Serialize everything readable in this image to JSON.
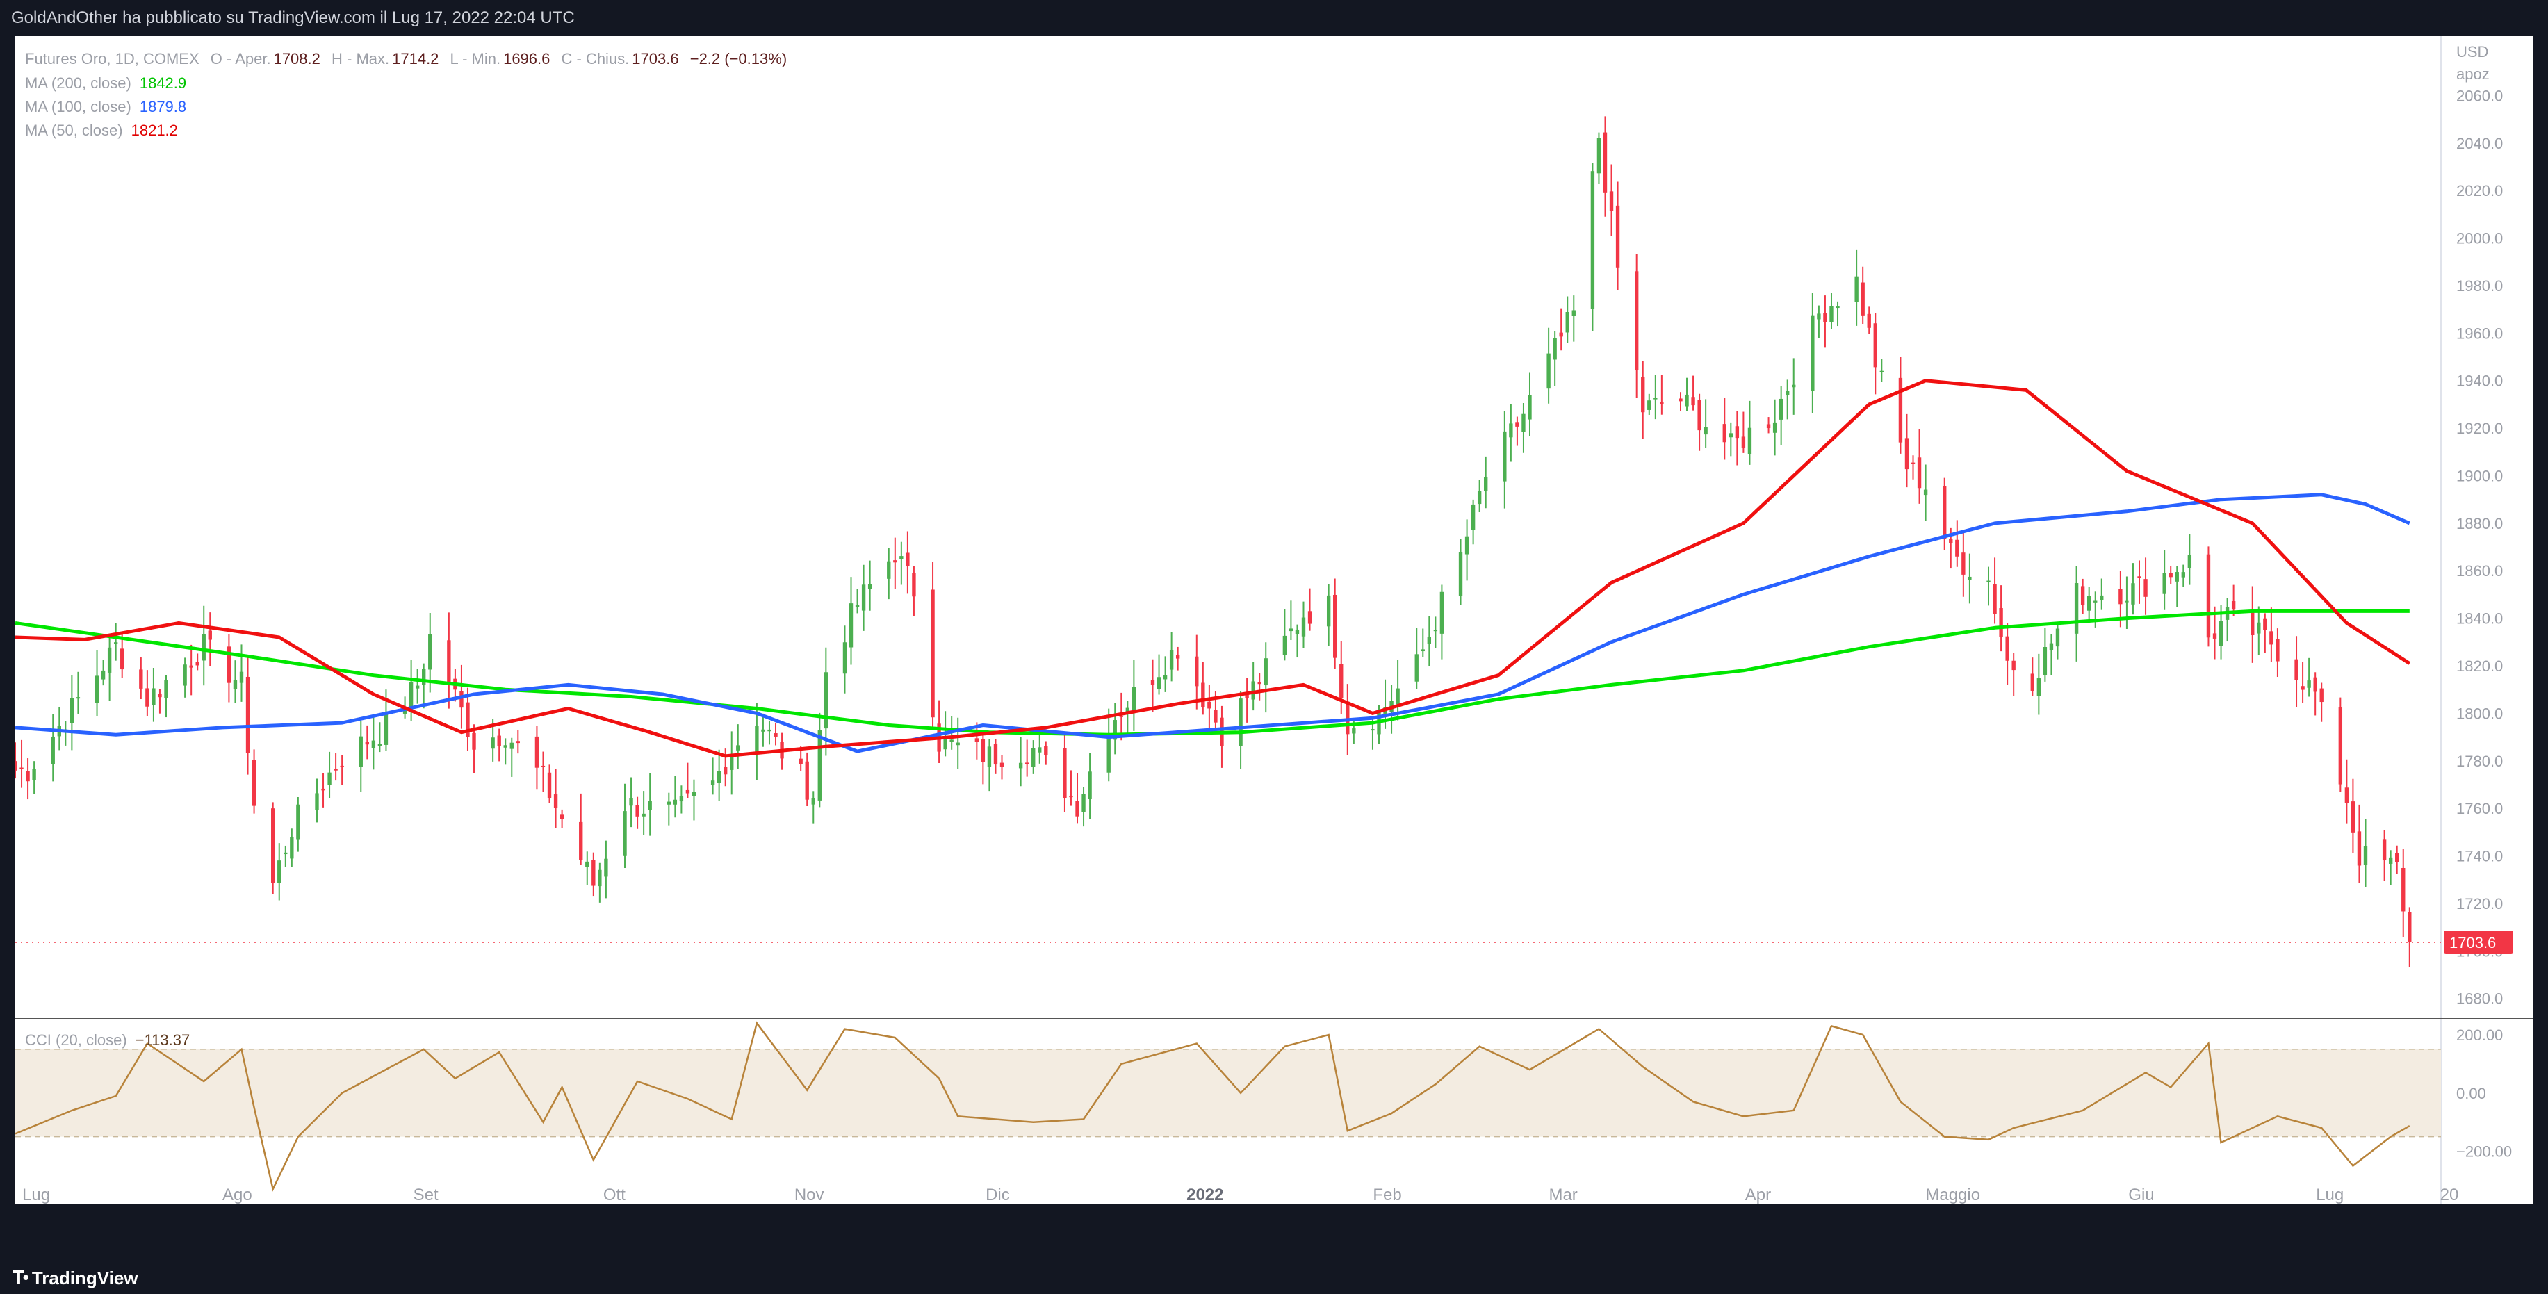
{
  "header": {
    "published": "GoldAndOther ha pubblicato su TradingView.com il Lug 17, 2022 22:04 UTC"
  },
  "footer": {
    "brand": "TradingView"
  },
  "legend": {
    "symbol": "Futures Oro, 1D, COMEX",
    "open_label": "O - Aper.",
    "open": "1708.2",
    "high_label": "H - Max.",
    "high": "1714.2",
    "low_label": "L - Min.",
    "low": "1696.6",
    "close_label": "C - Chius.",
    "close": "1703.6",
    "change": "−2.2 (−0.13%)",
    "ma200_label": "MA (200, close)",
    "ma200": "1842.9",
    "ma100_label": "MA (100, close)",
    "ma100": "1879.8",
    "ma50_label": "MA (50, close)",
    "ma50": "1821.2",
    "cci_label": "CCI (20, close)",
    "cci": "−113.37"
  },
  "chart_data": {
    "type": "candlestick",
    "title": "Futures Oro, 1D, COMEX",
    "currency": "USD",
    "scale_mode": "apoz",
    "last_price": "1703.6",
    "y_range": [
      1672,
      2085
    ],
    "y_ticks": [
      "1680.0",
      "1700.0",
      "1720.0",
      "1740.0",
      "1760.0",
      "1780.0",
      "1800.0",
      "1820.0",
      "1840.0",
      "1860.0",
      "1880.0",
      "1900.0",
      "1920.0",
      "1940.0",
      "1960.0",
      "1980.0",
      "2000.0",
      "2020.0",
      "2040.0",
      "2060.0"
    ],
    "x_ticks": [
      "Lug",
      "Ago",
      "Set",
      "Ott",
      "Nov",
      "Dic",
      "2022",
      "Feb",
      "Mar",
      "Apr",
      "Maggio",
      "Giu",
      "Lug",
      "20"
    ],
    "anchors": [
      [
        "2021-07-01",
        1776
      ],
      [
        "2021-07-08",
        1802
      ],
      [
        "2021-07-15",
        1828
      ],
      [
        "2021-07-20",
        1806
      ],
      [
        "2021-07-29",
        1828
      ],
      [
        "2021-08-04",
        1812
      ],
      [
        "2021-08-06",
        1762
      ],
      [
        "2021-08-09",
        1728
      ],
      [
        "2021-08-12",
        1752
      ],
      [
        "2021-08-20",
        1782
      ],
      [
        "2021-08-26",
        1792
      ],
      [
        "2021-09-01",
        1812
      ],
      [
        "2021-09-03",
        1832
      ],
      [
        "2021-09-10",
        1788
      ],
      [
        "2021-09-15",
        1792
      ],
      [
        "2021-09-21",
        1772
      ],
      [
        "2021-09-29",
        1728
      ],
      [
        "2021-10-04",
        1762
      ],
      [
        "2021-10-12",
        1758
      ],
      [
        "2021-10-18",
        1770
      ],
      [
        "2021-10-21",
        1785
      ],
      [
        "2021-10-25",
        1798
      ],
      [
        "2021-11-03",
        1766
      ],
      [
        "2021-11-05",
        1818
      ],
      [
        "2021-11-10",
        1846
      ],
      [
        "2021-11-16",
        1868
      ],
      [
        "2021-11-19",
        1852
      ],
      [
        "2021-11-23",
        1788
      ],
      [
        "2021-12-01",
        1782
      ],
      [
        "2021-12-08",
        1785
      ],
      [
        "2021-12-15",
        1762
      ],
      [
        "2021-12-20",
        1796
      ],
      [
        "2021-12-31",
        1828
      ],
      [
        "2022-01-07",
        1792
      ],
      [
        "2022-01-14",
        1818
      ],
      [
        "2022-01-20",
        1842
      ],
      [
        "2022-01-24",
        1845
      ],
      [
        "2022-01-27",
        1795
      ],
      [
        "2022-02-01",
        1800
      ],
      [
        "2022-02-07",
        1820
      ],
      [
        "2022-02-14",
        1866
      ],
      [
        "2022-02-18",
        1900
      ],
      [
        "2022-02-24",
        1926
      ],
      [
        "2022-02-28",
        1948
      ],
      [
        "2022-03-04",
        1968
      ],
      [
        "2022-03-08",
        2043
      ],
      [
        "2022-03-11",
        1987
      ],
      [
        "2022-03-15",
        1928
      ],
      [
        "2022-03-21",
        1932
      ],
      [
        "2022-03-29",
        1912
      ],
      [
        "2022-04-05",
        1926
      ],
      [
        "2022-04-12",
        1968
      ],
      [
        "2022-04-18",
        1982
      ],
      [
        "2022-04-21",
        1948
      ],
      [
        "2022-04-26",
        1904
      ],
      [
        "2022-04-29",
        1896
      ],
      [
        "2022-05-03",
        1867
      ],
      [
        "2022-05-09",
        1856
      ],
      [
        "2022-05-12",
        1822
      ],
      [
        "2022-05-16",
        1815
      ],
      [
        "2022-05-23",
        1850
      ],
      [
        "2022-06-01",
        1852
      ],
      [
        "2022-06-10",
        1864
      ],
      [
        "2022-06-13",
        1832
      ],
      [
        "2022-06-16",
        1840
      ],
      [
        "2022-06-23",
        1830
      ],
      [
        "2022-06-30",
        1808
      ],
      [
        "2022-07-05",
        1764
      ],
      [
        "2022-07-07",
        1740
      ],
      [
        "2022-07-13",
        1735
      ],
      [
        "2022-07-15",
        1703.6
      ]
    ],
    "moving_averages": [
      {
        "name": "MA (200, close)",
        "color": "#00e600",
        "points": [
          [
            "2021-06-29",
            1838
          ],
          [
            "2021-07-15",
            1832
          ],
          [
            "2021-08-05",
            1824
          ],
          [
            "2021-08-25",
            1816
          ],
          [
            "2021-09-15",
            1810
          ],
          [
            "2021-10-05",
            1807
          ],
          [
            "2021-10-25",
            1802
          ],
          [
            "2021-11-15",
            1795
          ],
          [
            "2021-12-01",
            1792
          ],
          [
            "2021-12-20",
            1791
          ],
          [
            "2022-01-10",
            1792
          ],
          [
            "2022-01-31",
            1796
          ],
          [
            "2022-02-20",
            1806
          ],
          [
            "2022-03-10",
            1812
          ],
          [
            "2022-03-31",
            1818
          ],
          [
            "2022-04-20",
            1828
          ],
          [
            "2022-05-10",
            1836
          ],
          [
            "2022-05-31",
            1840
          ],
          [
            "2022-06-20",
            1843
          ],
          [
            "2022-07-15",
            1843
          ]
        ]
      },
      {
        "name": "MA (100, close)",
        "color": "#2962ff",
        "points": [
          [
            "2021-06-29",
            1794
          ],
          [
            "2021-07-15",
            1791
          ],
          [
            "2021-08-01",
            1794
          ],
          [
            "2021-08-20",
            1796
          ],
          [
            "2021-09-10",
            1808
          ],
          [
            "2021-09-25",
            1812
          ],
          [
            "2021-10-10",
            1808
          ],
          [
            "2021-10-25",
            1800
          ],
          [
            "2021-11-10",
            1784
          ],
          [
            "2021-11-30",
            1795
          ],
          [
            "2021-12-20",
            1790
          ],
          [
            "2022-01-10",
            1794
          ],
          [
            "2022-01-31",
            1798
          ],
          [
            "2022-02-20",
            1808
          ],
          [
            "2022-03-10",
            1830
          ],
          [
            "2022-03-31",
            1850
          ],
          [
            "2022-04-20",
            1866
          ],
          [
            "2022-05-10",
            1880
          ],
          [
            "2022-05-31",
            1885
          ],
          [
            "2022-06-15",
            1890
          ],
          [
            "2022-07-01",
            1892
          ],
          [
            "2022-07-08",
            1888
          ],
          [
            "2022-07-15",
            1880
          ]
        ]
      },
      {
        "name": "MA (50, close)",
        "color": "#f01010",
        "points": [
          [
            "2021-06-29",
            1832
          ],
          [
            "2021-07-10",
            1831
          ],
          [
            "2021-07-25",
            1838
          ],
          [
            "2021-08-10",
            1832
          ],
          [
            "2021-08-25",
            1808
          ],
          [
            "2021-09-08",
            1792
          ],
          [
            "2021-09-25",
            1802
          ],
          [
            "2021-10-08",
            1792
          ],
          [
            "2021-10-20",
            1782
          ],
          [
            "2021-11-05",
            1786
          ],
          [
            "2021-11-25",
            1790
          ],
          [
            "2021-12-10",
            1794
          ],
          [
            "2021-12-31",
            1804
          ],
          [
            "2022-01-20",
            1812
          ],
          [
            "2022-01-31",
            1800
          ],
          [
            "2022-02-20",
            1816
          ],
          [
            "2022-03-10",
            1855
          ],
          [
            "2022-03-31",
            1880
          ],
          [
            "2022-04-20",
            1930
          ],
          [
            "2022-04-29",
            1940
          ],
          [
            "2022-05-15",
            1936
          ],
          [
            "2022-05-31",
            1902
          ],
          [
            "2022-06-20",
            1880
          ],
          [
            "2022-07-05",
            1838
          ],
          [
            "2022-07-15",
            1821
          ]
        ]
      }
    ],
    "indicator": {
      "name": "CCI (20, close)",
      "last": "-113.37",
      "band": [
        -150,
        150
      ],
      "y_range": [
        -380,
        250
      ],
      "y_ticks": [
        "200.00",
        "0.00",
        "−200.00"
      ],
      "points": [
        [
          "2021-06-29",
          -140
        ],
        [
          "2021-07-08",
          -60
        ],
        [
          "2021-07-15",
          -10
        ],
        [
          "2021-07-20",
          170
        ],
        [
          "2021-07-29",
          40
        ],
        [
          "2021-08-04",
          150
        ],
        [
          "2021-08-06",
          -50
        ],
        [
          "2021-08-09",
          -330
        ],
        [
          "2021-08-13",
          -150
        ],
        [
          "2021-08-20",
          0
        ],
        [
          "2021-09-02",
          150
        ],
        [
          "2021-09-07",
          50
        ],
        [
          "2021-09-14",
          140
        ],
        [
          "2021-09-21",
          -100
        ],
        [
          "2021-09-24",
          20
        ],
        [
          "2021-09-29",
          -230
        ],
        [
          "2021-10-06",
          40
        ],
        [
          "2021-10-14",
          -20
        ],
        [
          "2021-10-21",
          -90
        ],
        [
          "2021-10-25",
          240
        ],
        [
          "2021-11-02",
          10
        ],
        [
          "2021-11-08",
          220
        ],
        [
          "2021-11-16",
          190
        ],
        [
          "2021-11-23",
          50
        ],
        [
          "2021-11-26",
          -80
        ],
        [
          "2021-12-08",
          -100
        ],
        [
          "2021-12-16",
          -90
        ],
        [
          "2021-12-22",
          100
        ],
        [
          "2022-01-03",
          170
        ],
        [
          "2022-01-10",
          0
        ],
        [
          "2022-01-17",
          160
        ],
        [
          "2022-01-24",
          200
        ],
        [
          "2022-01-27",
          -130
        ],
        [
          "2022-02-03",
          -70
        ],
        [
          "2022-02-10",
          30
        ],
        [
          "2022-02-17",
          160
        ],
        [
          "2022-02-25",
          80
        ],
        [
          "2022-03-08",
          220
        ],
        [
          "2022-03-15",
          90
        ],
        [
          "2022-03-23",
          -30
        ],
        [
          "2022-03-31",
          -80
        ],
        [
          "2022-04-08",
          -60
        ],
        [
          "2022-04-14",
          230
        ],
        [
          "2022-04-19",
          200
        ],
        [
          "2022-04-25",
          -30
        ],
        [
          "2022-05-02",
          -150
        ],
        [
          "2022-05-09",
          -160
        ],
        [
          "2022-05-13",
          -120
        ],
        [
          "2022-05-24",
          -60
        ],
        [
          "2022-06-03",
          70
        ],
        [
          "2022-06-07",
          20
        ],
        [
          "2022-06-13",
          170
        ],
        [
          "2022-06-15",
          -170
        ],
        [
          "2022-06-24",
          -80
        ],
        [
          "2022-07-01",
          -120
        ],
        [
          "2022-07-06",
          -250
        ],
        [
          "2022-07-12",
          -150
        ],
        [
          "2022-07-15",
          -113
        ]
      ]
    }
  },
  "colors": {
    "up": "#4caf50",
    "down": "#f23645",
    "ma200": "#00e600",
    "ma100": "#2962ff",
    "ma50": "#f01010",
    "cci_line": "#b8833a",
    "cci_band": "#f3ece1"
  }
}
